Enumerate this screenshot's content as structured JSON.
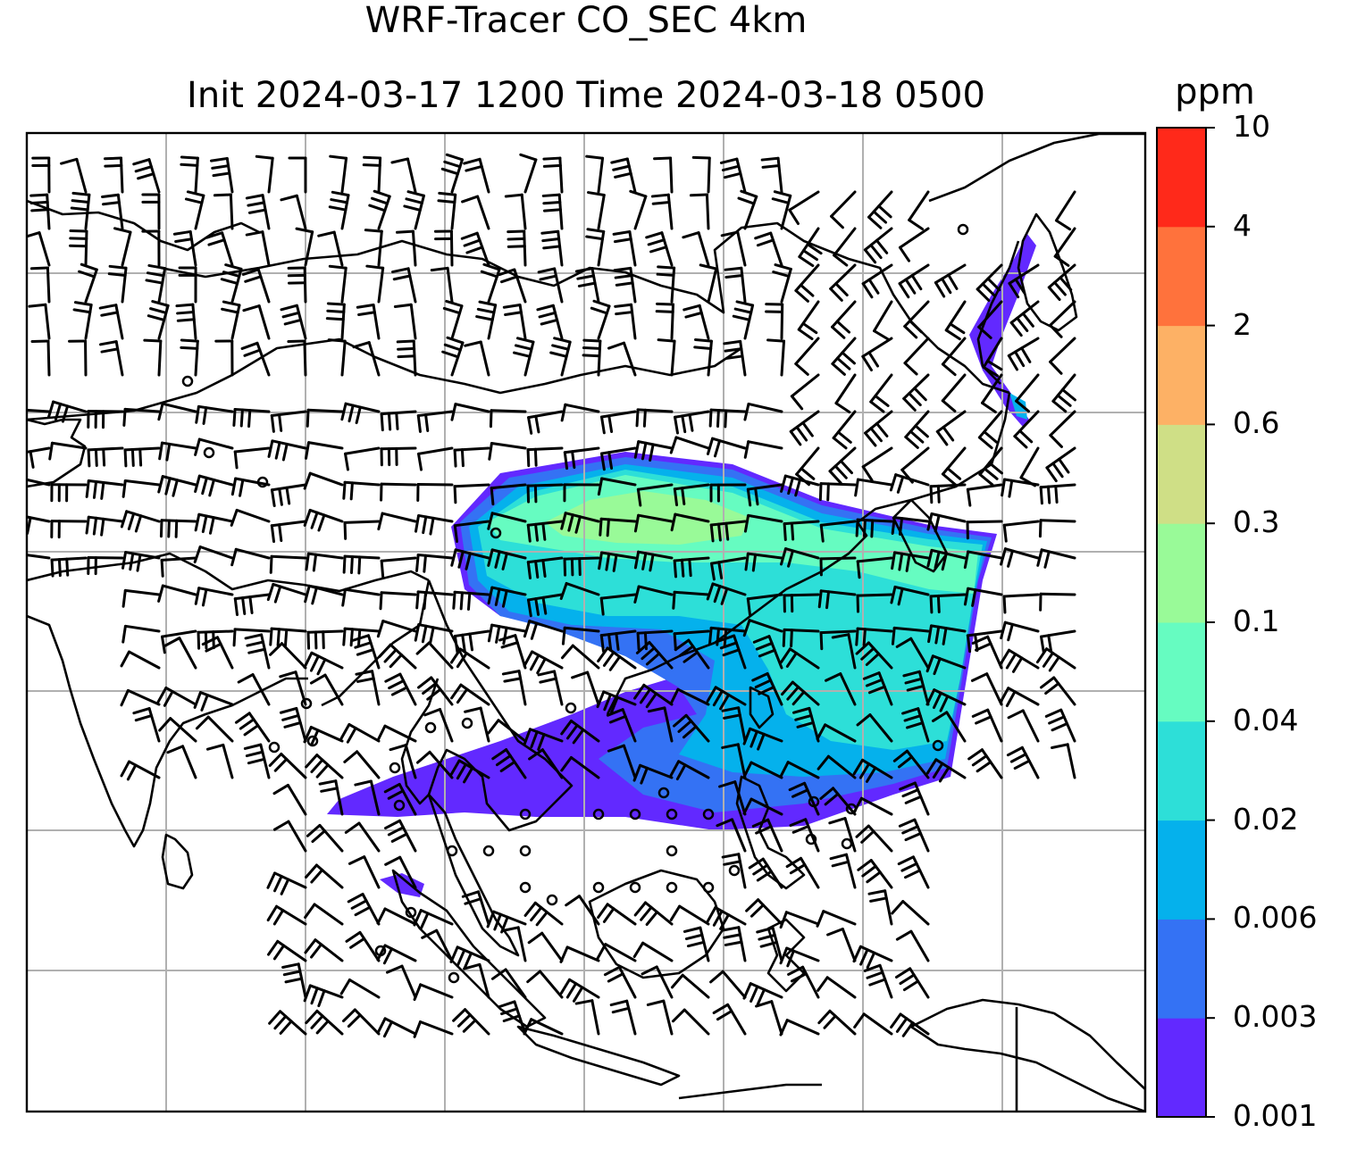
{
  "title": {
    "line1": "WRF-Tracer CO_SEC 4km",
    "line2": "Init 2024-03-17 1200 Time 2024-03-18 0500"
  },
  "colorbar": {
    "unit": "ppm",
    "ticks": [
      "0.001",
      "0.003",
      "0.006",
      "0.02",
      "0.04",
      "0.1",
      "0.3",
      "0.6",
      "2",
      "4",
      "10"
    ],
    "colors": [
      "#6229ff",
      "#3472f4",
      "#05b1ec",
      "#2ddfd8",
      "#66fcc1",
      "#99fa98",
      "#cfdf86",
      "#fdb165",
      "#ff723c",
      "#ff291a"
    ]
  },
  "map": {
    "gridlines": true,
    "coastline_color": "#000000",
    "grid_color": "#b0b0b0"
  }
}
